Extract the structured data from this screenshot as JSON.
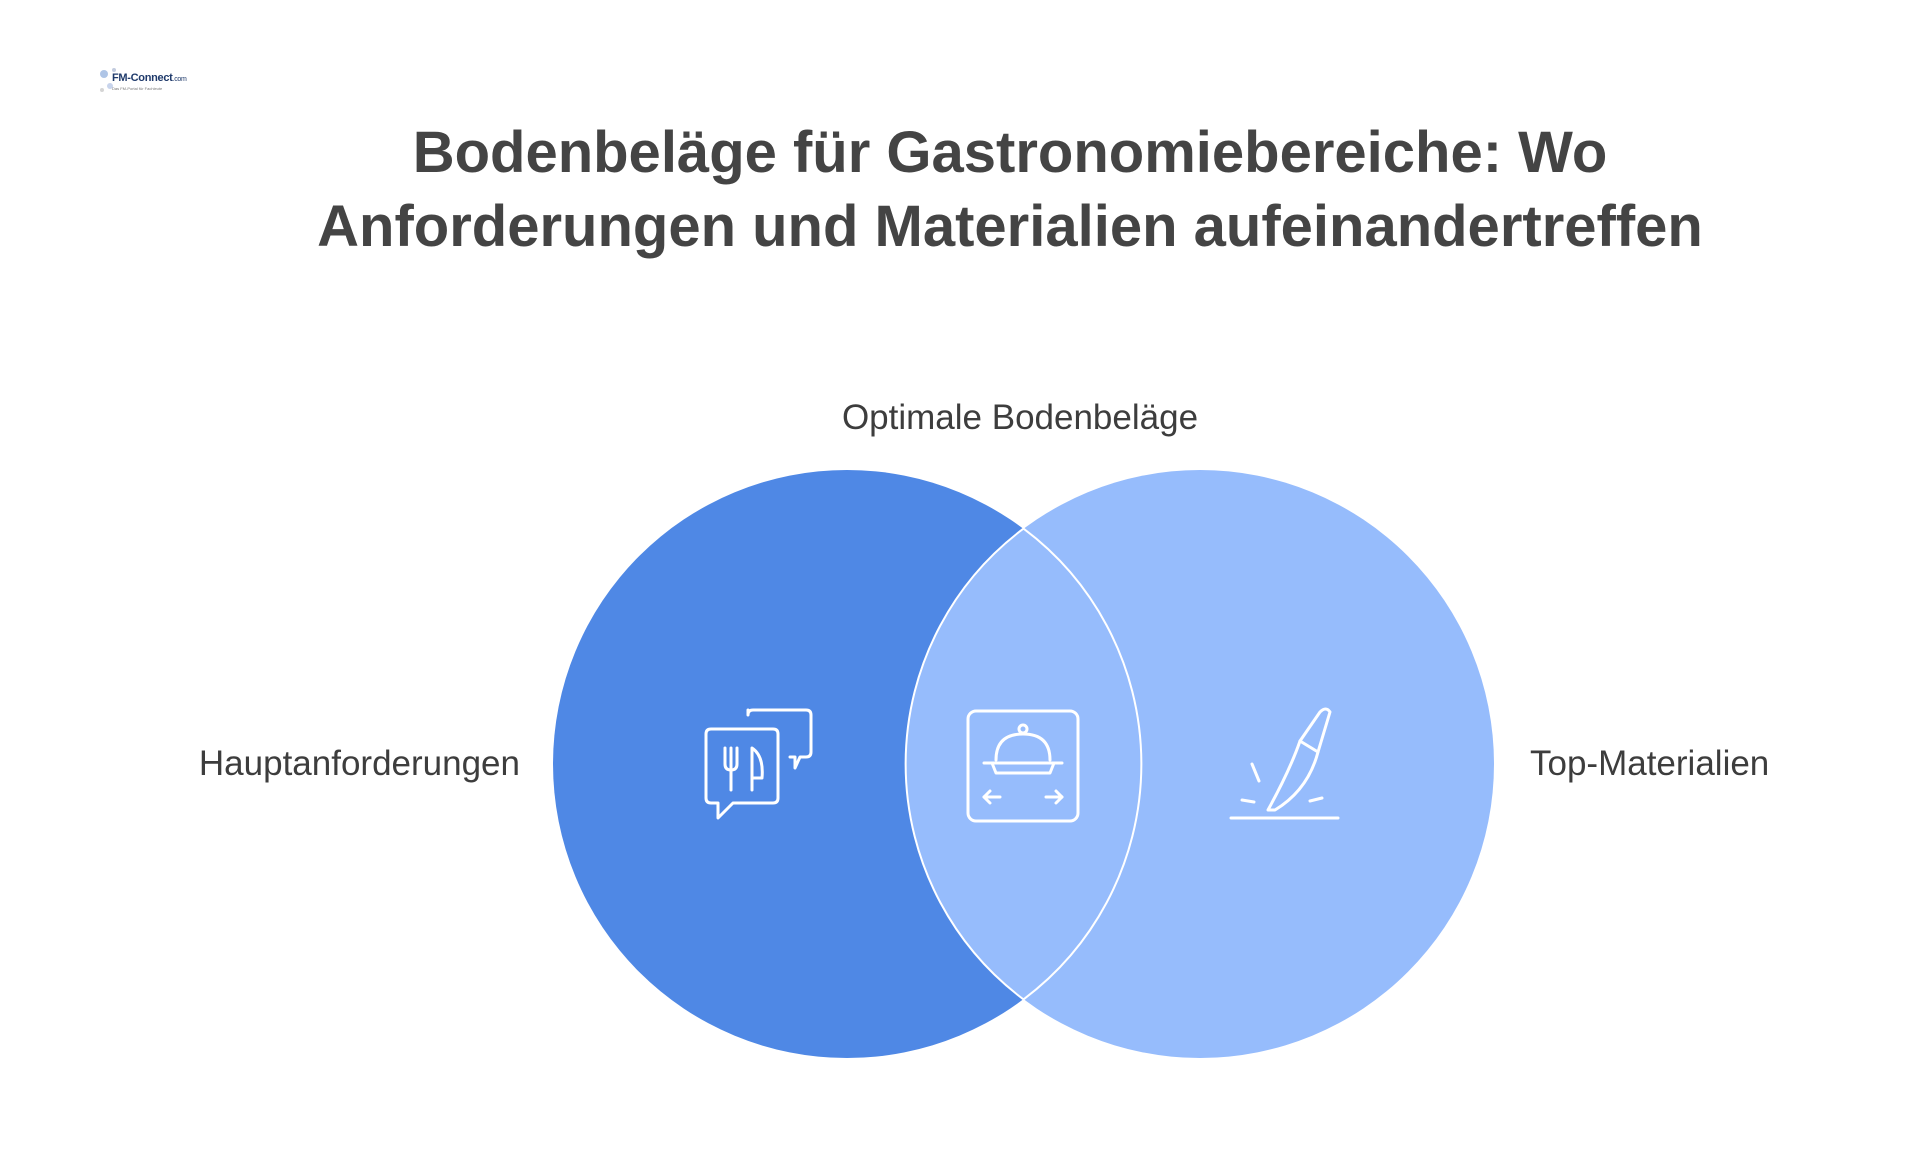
{
  "logo": {
    "name": "FM-Connect",
    "suffix": ".com",
    "tagline": "Das FM-Portal für Fachleute"
  },
  "title": {
    "line1": "Bodenbeläge für Gastronomiebereiche: Wo",
    "line2": "Anforderungen und Materialien aufeinandertreffen"
  },
  "venn": {
    "intersection_label": "Optimale Bodenbeläge",
    "left_label": "Hauptanforderungen",
    "right_label": "Top-Materialien",
    "icons": {
      "left": "chat-cutlery-icon",
      "center": "serving-cloche-icon",
      "right": "knife-cutting-icon"
    },
    "colors": {
      "left_circle": "#4f88e5",
      "right_circle": "#96bcfc",
      "outline": "#ffffff"
    }
  }
}
